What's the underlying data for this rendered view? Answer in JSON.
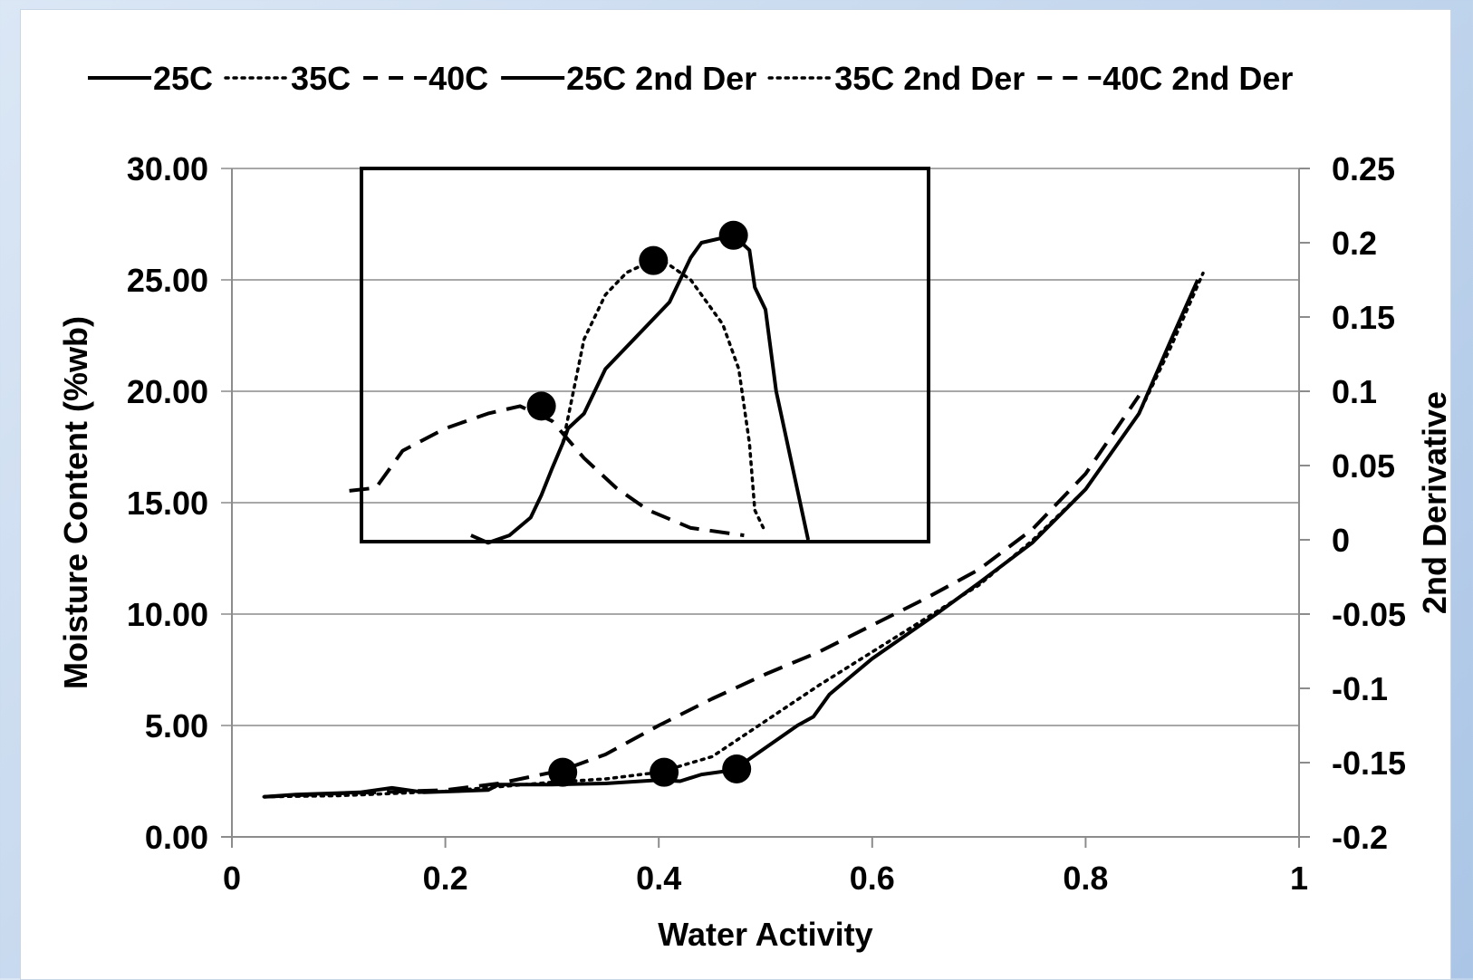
{
  "chart_data": {
    "type": "line",
    "xlabel": "Water Activity",
    "ylabel": "Moisture Content (%wb)",
    "y2label": "2nd Derivative",
    "xlim": [
      0,
      1
    ],
    "ylim": [
      0,
      30
    ],
    "y2lim": [
      -0.2,
      0.25
    ],
    "x_ticks": [
      "0",
      "0.2",
      "0.4",
      "0.6",
      "0.8",
      "1"
    ],
    "y_ticks": [
      "0.00",
      "5.00",
      "10.00",
      "15.00",
      "20.00",
      "25.00",
      "30.00"
    ],
    "y2_ticks": [
      "-0.2",
      "-0.15",
      "-0.1",
      "-0.05",
      "0",
      "0.05",
      "0.1",
      "0.15",
      "0.2",
      "0.25"
    ],
    "grid": "horizontal",
    "legend_position": "top",
    "series": [
      {
        "name": "25C",
        "axis": "primary",
        "style": "solid",
        "points": [
          [
            0.03,
            1.8
          ],
          [
            0.06,
            1.9
          ],
          [
            0.12,
            2.0
          ],
          [
            0.15,
            2.2
          ],
          [
            0.18,
            2.0
          ],
          [
            0.24,
            2.1
          ],
          [
            0.25,
            2.35
          ],
          [
            0.3,
            2.35
          ],
          [
            0.35,
            2.4
          ],
          [
            0.4,
            2.55
          ],
          [
            0.42,
            2.5
          ],
          [
            0.44,
            2.8
          ],
          [
            0.47,
            3.0
          ],
          [
            0.5,
            4.0
          ],
          [
            0.53,
            5.0
          ],
          [
            0.545,
            5.4
          ],
          [
            0.56,
            6.4
          ],
          [
            0.58,
            7.2
          ],
          [
            0.6,
            8.0
          ],
          [
            0.63,
            9.0
          ],
          [
            0.66,
            10.0
          ],
          [
            0.7,
            11.4
          ],
          [
            0.75,
            13.2
          ],
          [
            0.8,
            15.6
          ],
          [
            0.85,
            19.0
          ],
          [
            0.88,
            22.3
          ],
          [
            0.905,
            25.0
          ]
        ]
      },
      {
        "name": "35C",
        "axis": "primary",
        "style": "dotted",
        "points": [
          [
            0.03,
            1.8
          ],
          [
            0.1,
            1.85
          ],
          [
            0.2,
            2.05
          ],
          [
            0.3,
            2.45
          ],
          [
            0.35,
            2.6
          ],
          [
            0.4,
            2.9
          ],
          [
            0.45,
            3.6
          ],
          [
            0.5,
            5.2
          ],
          [
            0.55,
            6.8
          ],
          [
            0.6,
            8.3
          ],
          [
            0.65,
            9.8
          ],
          [
            0.7,
            11.3
          ],
          [
            0.75,
            13.3
          ],
          [
            0.8,
            15.6
          ],
          [
            0.85,
            19.0
          ],
          [
            0.88,
            22.0
          ],
          [
            0.91,
            25.3
          ]
        ]
      },
      {
        "name": "40C",
        "axis": "primary",
        "style": "dashed",
        "points": [
          [
            0.03,
            1.8
          ],
          [
            0.1,
            1.95
          ],
          [
            0.2,
            2.1
          ],
          [
            0.25,
            2.4
          ],
          [
            0.31,
            3.0
          ],
          [
            0.35,
            3.7
          ],
          [
            0.4,
            5.0
          ],
          [
            0.45,
            6.2
          ],
          [
            0.5,
            7.3
          ],
          [
            0.55,
            8.3
          ],
          [
            0.6,
            9.5
          ],
          [
            0.65,
            10.7
          ],
          [
            0.7,
            12.0
          ],
          [
            0.75,
            13.8
          ],
          [
            0.8,
            16.3
          ],
          [
            0.85,
            19.8
          ]
        ]
      },
      {
        "name": "25C 2nd Der",
        "axis": "secondary",
        "style": "solid",
        "points": [
          [
            0.224,
            0.003
          ],
          [
            0.24,
            -0.002
          ],
          [
            0.26,
            0.003
          ],
          [
            0.28,
            0.015
          ],
          [
            0.29,
            0.03
          ],
          [
            0.3,
            0.048
          ],
          [
            0.31,
            0.065
          ],
          [
            0.315,
            0.075
          ],
          [
            0.33,
            0.085
          ],
          [
            0.35,
            0.115
          ],
          [
            0.37,
            0.13
          ],
          [
            0.39,
            0.145
          ],
          [
            0.41,
            0.16
          ],
          [
            0.43,
            0.19
          ],
          [
            0.44,
            0.2
          ],
          [
            0.47,
            0.205
          ],
          [
            0.485,
            0.195
          ],
          [
            0.49,
            0.17
          ],
          [
            0.5,
            0.155
          ],
          [
            0.51,
            0.1
          ],
          [
            0.54,
            0.0
          ]
        ]
      },
      {
        "name": "35C 2nd Der",
        "axis": "secondary",
        "style": "dotted",
        "points": [
          [
            0.31,
            0.065
          ],
          [
            0.32,
            0.1
          ],
          [
            0.33,
            0.135
          ],
          [
            0.35,
            0.165
          ],
          [
            0.37,
            0.18
          ],
          [
            0.4,
            0.19
          ],
          [
            0.43,
            0.175
          ],
          [
            0.46,
            0.145
          ],
          [
            0.475,
            0.115
          ],
          [
            0.485,
            0.065
          ],
          [
            0.49,
            0.02
          ],
          [
            0.5,
            0.005
          ]
        ]
      },
      {
        "name": "40C 2nd Der",
        "axis": "secondary",
        "style": "dashed",
        "points": [
          [
            0.11,
            0.033
          ],
          [
            0.135,
            0.035
          ],
          [
            0.16,
            0.06
          ],
          [
            0.2,
            0.075
          ],
          [
            0.24,
            0.085
          ],
          [
            0.27,
            0.09
          ],
          [
            0.3,
            0.08
          ],
          [
            0.33,
            0.055
          ],
          [
            0.36,
            0.035
          ],
          [
            0.39,
            0.02
          ],
          [
            0.43,
            0.008
          ],
          [
            0.48,
            0.003
          ]
        ]
      }
    ],
    "markers": [
      {
        "axis": "primary",
        "x": 0.31,
        "y": 2.9
      },
      {
        "axis": "primary",
        "x": 0.405,
        "y": 2.9
      },
      {
        "axis": "primary",
        "x": 0.473,
        "y": 3.05
      },
      {
        "axis": "secondary",
        "x": 0.29,
        "y": 0.09
      },
      {
        "axis": "secondary",
        "x": 0.395,
        "y": 0.188
      },
      {
        "axis": "secondary",
        "x": 0.47,
        "y": 0.205
      }
    ]
  }
}
